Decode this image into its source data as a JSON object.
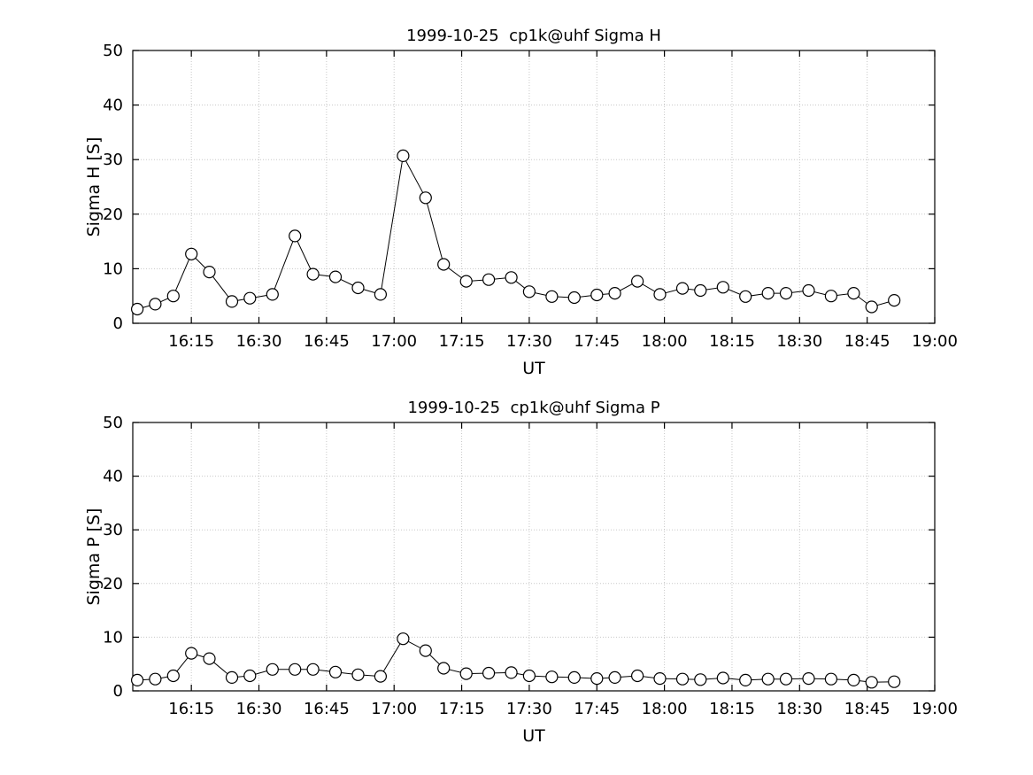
{
  "figure": {
    "background": "#ffffff",
    "axis_color": "#000000",
    "grid_color": "#c8c8c8",
    "marker_style": "open-circle"
  },
  "chart_data": [
    {
      "type": "line",
      "title": "1999-10-25  cp1k@uhf Sigma H",
      "xlabel": "UT",
      "ylabel": "Sigma H [S]",
      "ylim": [
        0,
        50
      ],
      "yticks": [
        0,
        10,
        20,
        30,
        40,
        50
      ],
      "xlim_minutes": [
        2,
        180
      ],
      "xtick_minutes": [
        15,
        30,
        45,
        60,
        75,
        90,
        105,
        120,
        135,
        150,
        165,
        180
      ],
      "xtick_labels": [
        "16:15",
        "16:30",
        "16:45",
        "17:00",
        "17:15",
        "17:30",
        "17:45",
        "18:00",
        "18:15",
        "18:30",
        "18:45",
        "19:00"
      ],
      "grid": true,
      "legend": "none",
      "line_color": "#000000",
      "marker": "open-circle",
      "x_minutes": [
        3,
        7,
        11,
        15,
        19,
        24,
        28,
        33,
        38,
        42,
        47,
        52,
        57,
        62,
        67,
        71,
        76,
        81,
        86,
        90,
        95,
        100,
        105,
        109,
        114,
        119,
        124,
        128,
        133,
        138,
        143,
        147,
        152,
        157,
        162,
        166,
        171
      ],
      "values": [
        2.6,
        3.5,
        5.0,
        12.7,
        9.4,
        4.0,
        4.6,
        5.3,
        16.0,
        9.0,
        8.5,
        6.5,
        5.3,
        30.7,
        23.0,
        10.8,
        7.7,
        8.0,
        8.4,
        5.8,
        4.9,
        4.7,
        5.2,
        5.5,
        7.7,
        5.3,
        6.4,
        6.0,
        6.6,
        4.9,
        5.5,
        5.5,
        6.0,
        5.0,
        5.5,
        3.0,
        4.2
      ]
    },
    {
      "type": "line",
      "title": "1999-10-25  cp1k@uhf Sigma P",
      "xlabel": "UT",
      "ylabel": "Sigma P [S]",
      "ylim": [
        0,
        50
      ],
      "yticks": [
        0,
        10,
        20,
        30,
        40,
        50
      ],
      "xlim_minutes": [
        2,
        180
      ],
      "xtick_minutes": [
        15,
        30,
        45,
        60,
        75,
        90,
        105,
        120,
        135,
        150,
        165,
        180
      ],
      "xtick_labels": [
        "16:15",
        "16:30",
        "16:45",
        "17:00",
        "17:15",
        "17:30",
        "17:45",
        "18:00",
        "18:15",
        "18:30",
        "18:45",
        "19:00"
      ],
      "grid": true,
      "legend": "none",
      "line_color": "#000000",
      "marker": "open-circle",
      "x_minutes": [
        3,
        7,
        11,
        15,
        19,
        24,
        28,
        33,
        38,
        42,
        47,
        52,
        57,
        62,
        67,
        71,
        76,
        81,
        86,
        90,
        95,
        100,
        105,
        109,
        114,
        119,
        124,
        128,
        133,
        138,
        143,
        147,
        152,
        157,
        162,
        166,
        171
      ],
      "values": [
        2.0,
        2.2,
        2.8,
        7.0,
        6.0,
        2.5,
        2.8,
        4.0,
        4.0,
        4.0,
        3.5,
        3.0,
        2.7,
        9.7,
        7.5,
        4.2,
        3.2,
        3.3,
        3.4,
        2.8,
        2.6,
        2.5,
        2.3,
        2.5,
        2.8,
        2.3,
        2.2,
        2.1,
        2.4,
        2.0,
        2.2,
        2.2,
        2.3,
        2.2,
        2.0,
        1.6,
        1.7
      ]
    }
  ]
}
